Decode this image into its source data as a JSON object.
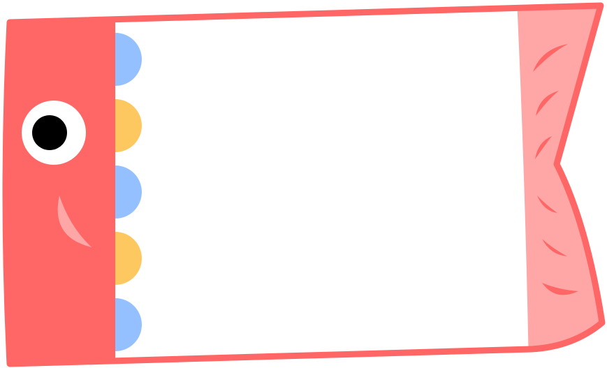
{
  "illustration": {
    "subject": "koinobori-carp-streamer-frame",
    "colors": {
      "outline": "#ff6666",
      "head": "#ff6666",
      "body": "#ffffff",
      "tail": "#ffa6a6",
      "scale_blue": "#94c0ff",
      "scale_yellow": "#fec860",
      "eye_white": "#ffffff",
      "pupil": "#000000",
      "cheek": "#ffa6a6",
      "tail_marks": "#ff6666"
    },
    "scale_pattern": [
      "blue",
      "yellow",
      "blue",
      "yellow",
      "blue"
    ]
  }
}
